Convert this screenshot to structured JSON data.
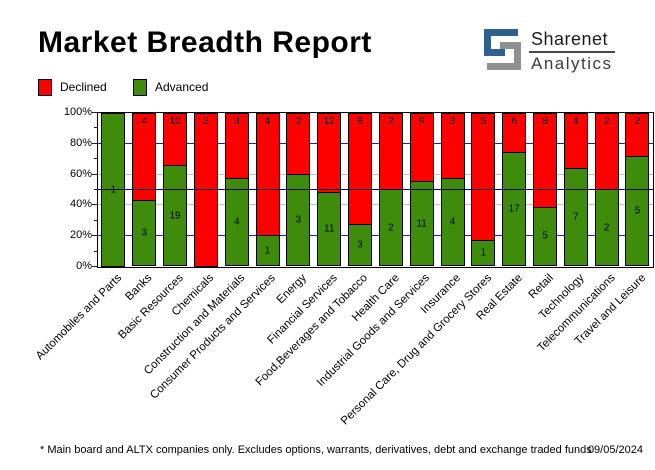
{
  "header": {
    "title": "Market Breadth Report",
    "logo": {
      "line1": "Sharenet",
      "line2": "Analytics",
      "blue": "#2f608f",
      "gray": "#8f8f8f"
    }
  },
  "legend": [
    {
      "label": "Declined",
      "color": "#ff0000"
    },
    {
      "label": "Advanced",
      "color": "#3f8c0c"
    }
  ],
  "footer": {
    "note": "* Main board and ALTX companies only. Excludes options, warrants, derivatives, debt and exchange traded funds",
    "date": "09/05/2024"
  },
  "chart_data": {
    "type": "bar",
    "stacked": true,
    "normalized": "percent",
    "title": "Market Breadth Report",
    "ylim": [
      0,
      100
    ],
    "y_tick_labels": [
      "100%",
      "80%",
      "60%",
      "40%",
      "20%",
      "0%"
    ],
    "y_major_ticks": [
      0,
      20,
      40,
      60,
      80,
      100
    ],
    "y_minor_ticks": [
      10,
      30,
      50,
      70,
      90
    ],
    "gridlines": {
      "blue_at": [
        20,
        80
      ],
      "gray_at": [
        40,
        60
      ],
      "mid_line_at": 50
    },
    "legend_position": "top-left",
    "categories": [
      "Automobiles and Parts",
      "Banks",
      "Basic Resources",
      "Chemicals",
      "Construction and Materials",
      "Consumer Products and Services",
      "Energy",
      "Financial Services",
      "Food,Beverages and Tobacco",
      "Health Care",
      "Industrial Goods and Services",
      "Insurance",
      "Personal Care, Drug and Grocery Stores",
      "Real Estate",
      "Retail",
      "Technology",
      "Telecommunications",
      "Travel and Leisure"
    ],
    "series": [
      {
        "name": "Declined",
        "color": "#ff0000",
        "values": [
          0,
          4,
          10,
          3,
          3,
          4,
          2,
          12,
          8,
          2,
          9,
          3,
          5,
          6,
          8,
          4,
          2,
          2
        ]
      },
      {
        "name": "Advanced",
        "color": "#3f8c0c",
        "values": [
          1,
          3,
          19,
          0,
          4,
          1,
          3,
          11,
          3,
          2,
          11,
          4,
          1,
          17,
          5,
          7,
          2,
          5
        ]
      }
    ]
  }
}
